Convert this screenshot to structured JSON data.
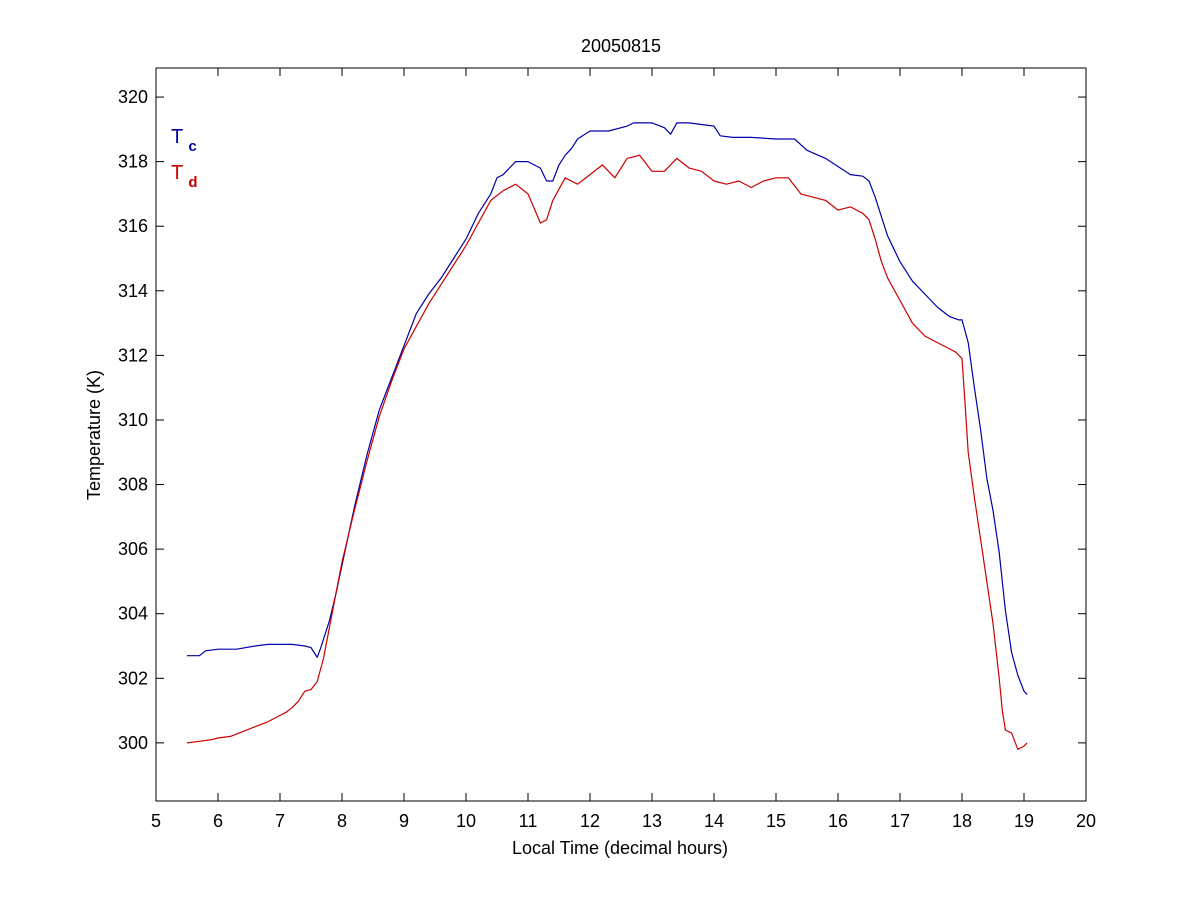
{
  "chart_data": {
    "type": "line",
    "title": "20050815",
    "xlabel": "Local Time (decimal hours)",
    "ylabel": "Temperature (K)",
    "xlim": [
      5,
      20
    ],
    "ylim": [
      298.2,
      320.9
    ],
    "xticks": [
      5,
      6,
      7,
      8,
      9,
      10,
      11,
      12,
      13,
      14,
      15,
      16,
      17,
      18,
      19,
      20
    ],
    "yticks": [
      300,
      302,
      304,
      306,
      308,
      310,
      312,
      314,
      316,
      318,
      320
    ],
    "grid": false,
    "legend_placement": "top-left",
    "series": [
      {
        "name": "Tc",
        "label_main": "T",
        "label_sub": "c",
        "color": "#0000a8",
        "x": [
          5.5,
          5.7,
          5.8,
          6.0,
          6.3,
          6.6,
          6.8,
          7.0,
          7.2,
          7.4,
          7.5,
          7.55,
          7.6,
          7.65,
          7.7,
          7.8,
          7.9,
          8.0,
          8.2,
          8.4,
          8.6,
          8.8,
          9.0,
          9.2,
          9.4,
          9.6,
          9.8,
          10.0,
          10.2,
          10.4,
          10.5,
          10.6,
          10.8,
          11.0,
          11.2,
          11.3,
          11.4,
          11.5,
          11.6,
          11.7,
          11.8,
          12.0,
          12.3,
          12.6,
          12.7,
          13.0,
          13.2,
          13.3,
          13.4,
          13.6,
          14.0,
          14.1,
          14.3,
          14.6,
          15.0,
          15.3,
          15.5,
          15.8,
          16.0,
          16.2,
          16.4,
          16.5,
          16.6,
          16.8,
          17.0,
          17.2,
          17.4,
          17.6,
          17.8,
          17.95,
          18.0,
          18.1,
          18.2,
          18.3,
          18.4,
          18.5,
          18.6,
          18.7,
          18.8,
          18.9,
          19.0,
          19.05
        ],
        "y": [
          302.7,
          302.7,
          302.85,
          302.9,
          302.9,
          303.0,
          303.05,
          303.05,
          303.05,
          303.0,
          302.95,
          302.8,
          302.65,
          302.9,
          303.2,
          303.8,
          304.6,
          305.5,
          307.3,
          308.9,
          310.3,
          311.3,
          312.3,
          313.3,
          313.9,
          314.4,
          315.0,
          315.6,
          316.4,
          317.0,
          317.5,
          317.6,
          318.0,
          318.0,
          317.8,
          317.4,
          317.4,
          317.9,
          318.2,
          318.4,
          318.7,
          318.95,
          318.95,
          319.1,
          319.2,
          319.2,
          319.05,
          318.85,
          319.2,
          319.2,
          319.1,
          318.8,
          318.75,
          318.75,
          318.7,
          318.7,
          318.35,
          318.1,
          317.85,
          317.6,
          317.55,
          317.4,
          316.9,
          315.7,
          314.9,
          314.3,
          313.9,
          313.5,
          313.2,
          313.1,
          313.1,
          312.4,
          311.0,
          309.7,
          308.2,
          307.2,
          305.9,
          304.1,
          302.8,
          302.1,
          301.6,
          301.5
        ]
      },
      {
        "name": "Td",
        "label_main": "T",
        "label_sub": "d",
        "color": "#cc0000",
        "x": [
          5.5,
          5.7,
          5.9,
          6.0,
          6.2,
          6.4,
          6.6,
          6.8,
          7.0,
          7.1,
          7.2,
          7.3,
          7.4,
          7.5,
          7.6,
          7.7,
          7.8,
          7.9,
          8.0,
          8.2,
          8.4,
          8.6,
          8.8,
          9.0,
          9.2,
          9.4,
          9.6,
          9.8,
          10.0,
          10.2,
          10.4,
          10.6,
          10.8,
          11.0,
          11.2,
          11.3,
          11.4,
          11.6,
          11.8,
          12.0,
          12.2,
          12.4,
          12.6,
          12.8,
          13.0,
          13.2,
          13.4,
          13.6,
          13.8,
          14.0,
          14.2,
          14.4,
          14.6,
          14.8,
          15.0,
          15.2,
          15.4,
          15.6,
          15.8,
          16.0,
          16.2,
          16.4,
          16.5,
          16.6,
          16.7,
          16.8,
          17.0,
          17.2,
          17.4,
          17.6,
          17.8,
          17.9,
          18.0,
          18.05,
          18.1,
          18.2,
          18.3,
          18.4,
          18.5,
          18.6,
          18.65,
          18.7,
          18.8,
          18.9,
          19.0,
          19.05
        ],
        "y": [
          300.0,
          300.05,
          300.1,
          300.15,
          300.2,
          300.35,
          300.5,
          300.65,
          300.85,
          300.95,
          301.1,
          301.3,
          301.6,
          301.65,
          301.9,
          302.6,
          303.6,
          304.6,
          305.6,
          307.2,
          308.7,
          310.1,
          311.2,
          312.2,
          312.9,
          313.6,
          314.2,
          314.8,
          315.4,
          316.1,
          316.8,
          317.1,
          317.3,
          317.0,
          316.1,
          316.2,
          316.8,
          317.5,
          317.3,
          317.6,
          317.9,
          317.5,
          318.1,
          318.2,
          317.7,
          317.7,
          318.1,
          317.8,
          317.7,
          317.4,
          317.3,
          317.4,
          317.2,
          317.4,
          317.5,
          317.5,
          317.0,
          316.9,
          316.8,
          316.5,
          316.6,
          316.4,
          316.2,
          315.6,
          314.9,
          314.4,
          313.7,
          313.0,
          312.6,
          312.4,
          312.2,
          312.1,
          311.9,
          310.5,
          309.0,
          307.6,
          306.3,
          305.0,
          303.7,
          302.0,
          301.0,
          300.4,
          300.3,
          299.8,
          299.9,
          300.0
        ]
      }
    ]
  }
}
